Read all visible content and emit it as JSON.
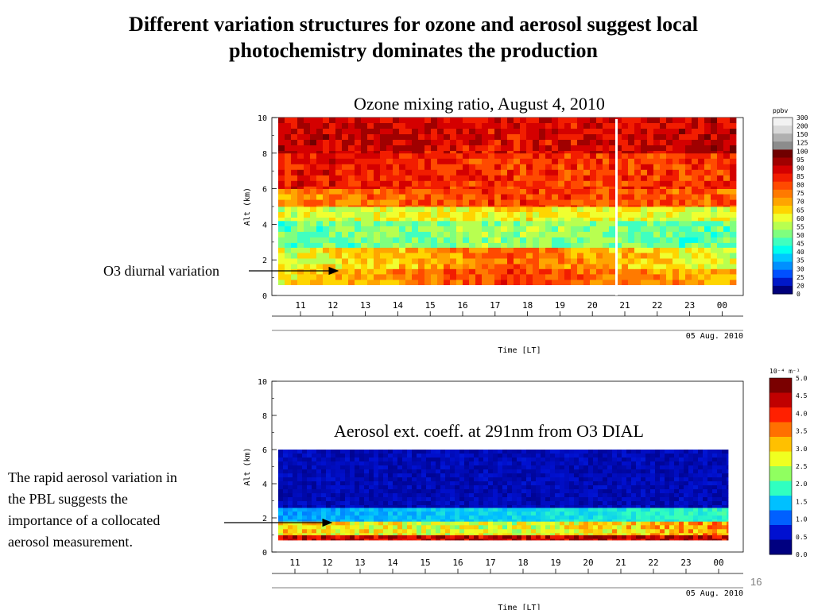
{
  "slide": {
    "title_line1": "Different variation structures for ozone and aerosol suggest local",
    "title_line2": "photochemistry dominates the production",
    "page_number": "16"
  },
  "annotations": {
    "o3_label": "O3 diurnal variation",
    "aerosol_label_lines": [
      "The rapid aerosol variation in",
      "the PBL suggests the",
      "importance of a collocated",
      "aerosol measurement."
    ]
  },
  "chart_data": [
    {
      "type": "heatmap",
      "title": "Ozone mixing ratio, August 4, 2010",
      "ylabel": "Alt (km)",
      "xlabel": "Time [LT]",
      "date_label": "05 Aug. 2010",
      "yticks": [
        "0",
        "2",
        "4",
        "6",
        "8",
        "10"
      ],
      "ylim": [
        0,
        10
      ],
      "xticks": [
        "11",
        "12",
        "13",
        "14",
        "15",
        "16",
        "17",
        "18",
        "19",
        "20",
        "21",
        "22",
        "23",
        "00"
      ],
      "colorbar_unit": "ppbv",
      "colorbar_ticks": [
        "300",
        "200",
        "150",
        "125",
        "100",
        "95",
        "90",
        "85",
        "80",
        "75",
        "70",
        "65",
        "60",
        "55",
        "50",
        "45",
        "40",
        "35",
        "30",
        "25",
        "20",
        "0"
      ],
      "colorbar_colors": [
        "#f2f2f2",
        "#d9d9d9",
        "#b0b0b0",
        "#8c8c8c",
        "#700000",
        "#a00000",
        "#d40000",
        "#f21d00",
        "#ff4a00",
        "#ff7a00",
        "#ffa500",
        "#ffd500",
        "#f0ff30",
        "#b8ff50",
        "#7fff7f",
        "#40ffc0",
        "#00ffee",
        "#00c8ff",
        "#0090ff",
        "#0050ff",
        "#0018c8",
        "#00007a"
      ],
      "layers": [
        {
          "alt_km": [
            0.6,
            1.5
          ],
          "values_ppbv": [
            65,
            85,
            70
          ]
        },
        {
          "alt_km": [
            1.5,
            2.7
          ],
          "values_ppbv": [
            60,
            80,
            60
          ]
        },
        {
          "alt_km": [
            2.7,
            4.2
          ],
          "values_ppbv": [
            50,
            55,
            50
          ]
        },
        {
          "alt_km": [
            4.2,
            5.0
          ],
          "values_ppbv": [
            60,
            65,
            60
          ]
        },
        {
          "alt_km": [
            5.0,
            6.0
          ],
          "values_ppbv": [
            75,
            85,
            80
          ]
        },
        {
          "alt_km": [
            6.0,
            8.0
          ],
          "values_ppbv": [
            90,
            85,
            85
          ]
        },
        {
          "alt_km": [
            8.0,
            10.0
          ],
          "values_ppbv": [
            95,
            90,
            95
          ]
        }
      ]
    },
    {
      "type": "heatmap",
      "title": "Aerosol ext. coeff. at 291nm from O3 DIAL",
      "ylabel": "Alt (km)",
      "xlabel": "Time [LT]",
      "date_label": "05 Aug. 2010",
      "yticks": [
        "0",
        "2",
        "4",
        "6",
        "8",
        "10"
      ],
      "ylim": [
        0,
        10
      ],
      "xticks": [
        "11",
        "12",
        "13",
        "14",
        "15",
        "16",
        "17",
        "18",
        "19",
        "20",
        "21",
        "22",
        "23",
        "00"
      ],
      "colorbar_unit": "10⁻⁴ m⁻¹",
      "colorbar_ticks": [
        "5.0",
        "4.5",
        "4.0",
        "3.5",
        "3.0",
        "2.5",
        "2.0",
        "1.5",
        "1.0",
        "0.5",
        "0.0"
      ],
      "colorbar_colors": [
        "#7a0000",
        "#c00000",
        "#ff2000",
        "#ff7000",
        "#ffc000",
        "#f0ff20",
        "#90ff60",
        "#30ffc0",
        "#00c0ff",
        "#0060ff",
        "#0010d0",
        "#000080"
      ],
      "layers": [
        {
          "alt_km": [
            0.7,
            1.0
          ],
          "values": [
            4.5,
            4.5,
            4.5
          ]
        },
        {
          "alt_km": [
            1.0,
            1.8
          ],
          "values": [
            3.0,
            2.5,
            3.5
          ]
        },
        {
          "alt_km": [
            1.8,
            2.6
          ],
          "values": [
            1.2,
            1.5,
            1.8
          ]
        },
        {
          "alt_km": [
            2.6,
            6.0
          ],
          "values": [
            0.3,
            0.3,
            0.3
          ]
        }
      ]
    }
  ]
}
